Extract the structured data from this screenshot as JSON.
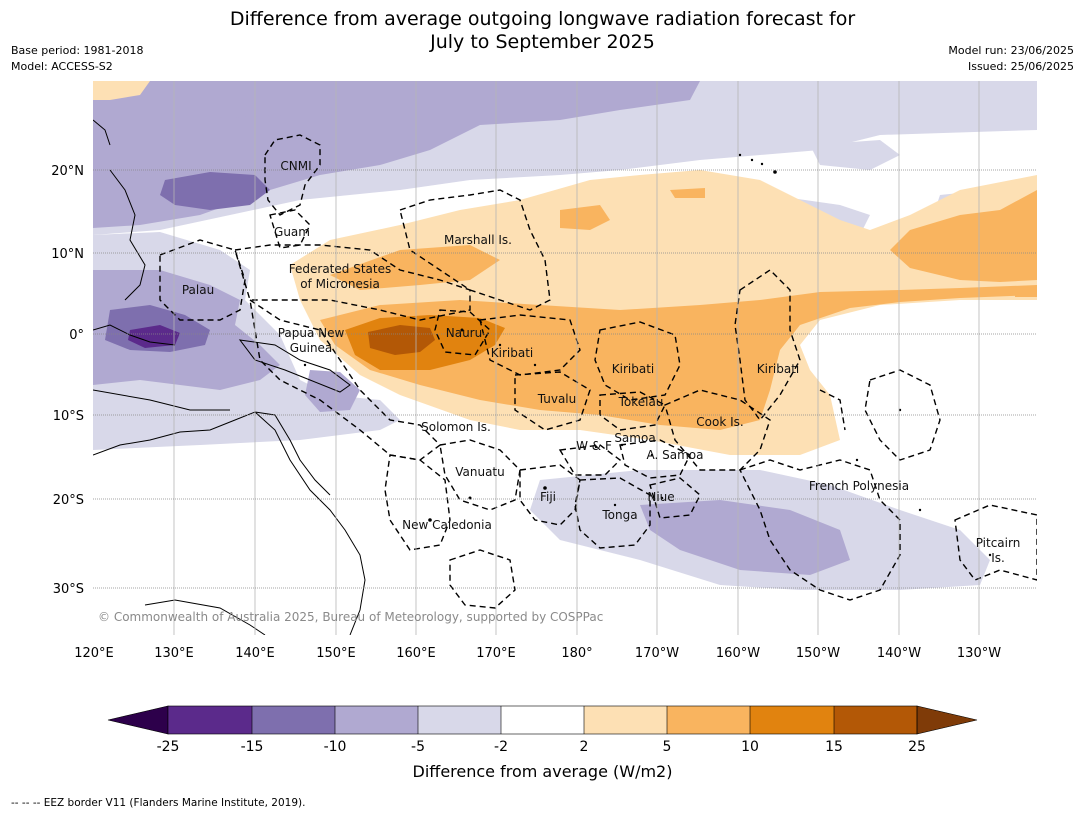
{
  "title_line1": "Difference from average outgoing longwave radiation forecast for",
  "title_line2": "July to September 2025",
  "base_period": "Base period: 1981-2018",
  "model": "Model: ACCESS-S2",
  "model_run": "Model run: 23/06/2025",
  "issued": "Issued: 25/06/2025",
  "copyright": "© Commonwealth of Australia 2025, Bureau of Meteorology, supported by COSPPac",
  "footer": "--  --  -- EEZ border V11 (Flanders Marine Institute, 2019).",
  "colorbar": {
    "label": "Difference from average (W/m2)",
    "ticks": [
      "-25",
      "-15",
      "-10",
      "-5",
      "-2",
      "2",
      "5",
      "10",
      "15",
      "25"
    ],
    "colors": [
      "#5b2a8b",
      "#7e6fae",
      "#b0a9d1",
      "#d8d8e9",
      "#ffffff",
      "#fde0b4",
      "#f9b45f",
      "#e1830f",
      "#b35806"
    ],
    "under_color": "#2d004b",
    "over_color": "#7f3b08"
  },
  "axes": {
    "lat_labels": [
      "20°N",
      "10°N",
      "0°",
      "10°S",
      "20°S",
      "30°S"
    ],
    "lon_labels": [
      "120°E",
      "130°E",
      "140°E",
      "150°E",
      "160°E",
      "170°E",
      "180°",
      "170°W",
      "160°W",
      "150°W",
      "140°W",
      "130°W"
    ]
  },
  "region_labels": [
    "CNMI",
    "Guam",
    "Marshall Is.",
    "Federated States",
    "of Micronesia",
    "Palau",
    "Papua New",
    "Guinea",
    "Nauru",
    "Kiribati",
    "Kiribati",
    "Kiribati",
    "Tuvalu",
    "Tokelau",
    "Cook Is.",
    "Solomon Is.",
    "W & F",
    "Samoa",
    "A. Samoa",
    "Vanuatu",
    "Fiji",
    "Niue",
    "Tonga",
    "French Polynesia",
    "New Caledonia",
    "Pitcairn",
    "Is."
  ]
}
